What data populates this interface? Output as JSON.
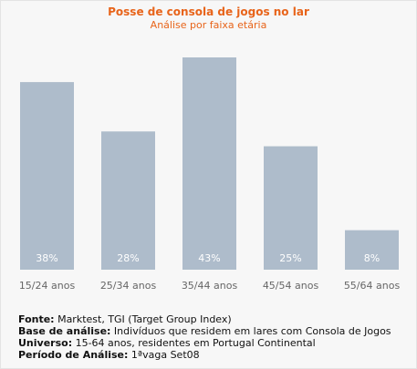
{
  "chart_data": {
    "type": "bar",
    "title": "Posse de consola de jogos no lar",
    "subtitle": "Análise por faixa etária",
    "categories": [
      "15/24 anos",
      "25/34 anos",
      "35/44 anos",
      "45/54 anos",
      "55/64 anos"
    ],
    "values": [
      38,
      28,
      43,
      25,
      8
    ],
    "value_labels": [
      "38%",
      "28%",
      "43%",
      "25%",
      "8%"
    ],
    "ylim": [
      0,
      43
    ],
    "grid": false,
    "bar_color": "#aebccb",
    "label_color": "#ffffff",
    "title_color": "#e8641a"
  },
  "notes": [
    {
      "label": "Fonte:",
      "text": " Marktest, TGI (Target Group Index)"
    },
    {
      "label": "Base de análise:",
      "text": " Indivíduos que residem em lares com Consola de Jogos"
    },
    {
      "label": "Universo:",
      "text": " 15-64 anos, residentes em Portugal Continental"
    },
    {
      "label": "Período de Análise:",
      "text": " 1ªvaga Set08"
    }
  ]
}
